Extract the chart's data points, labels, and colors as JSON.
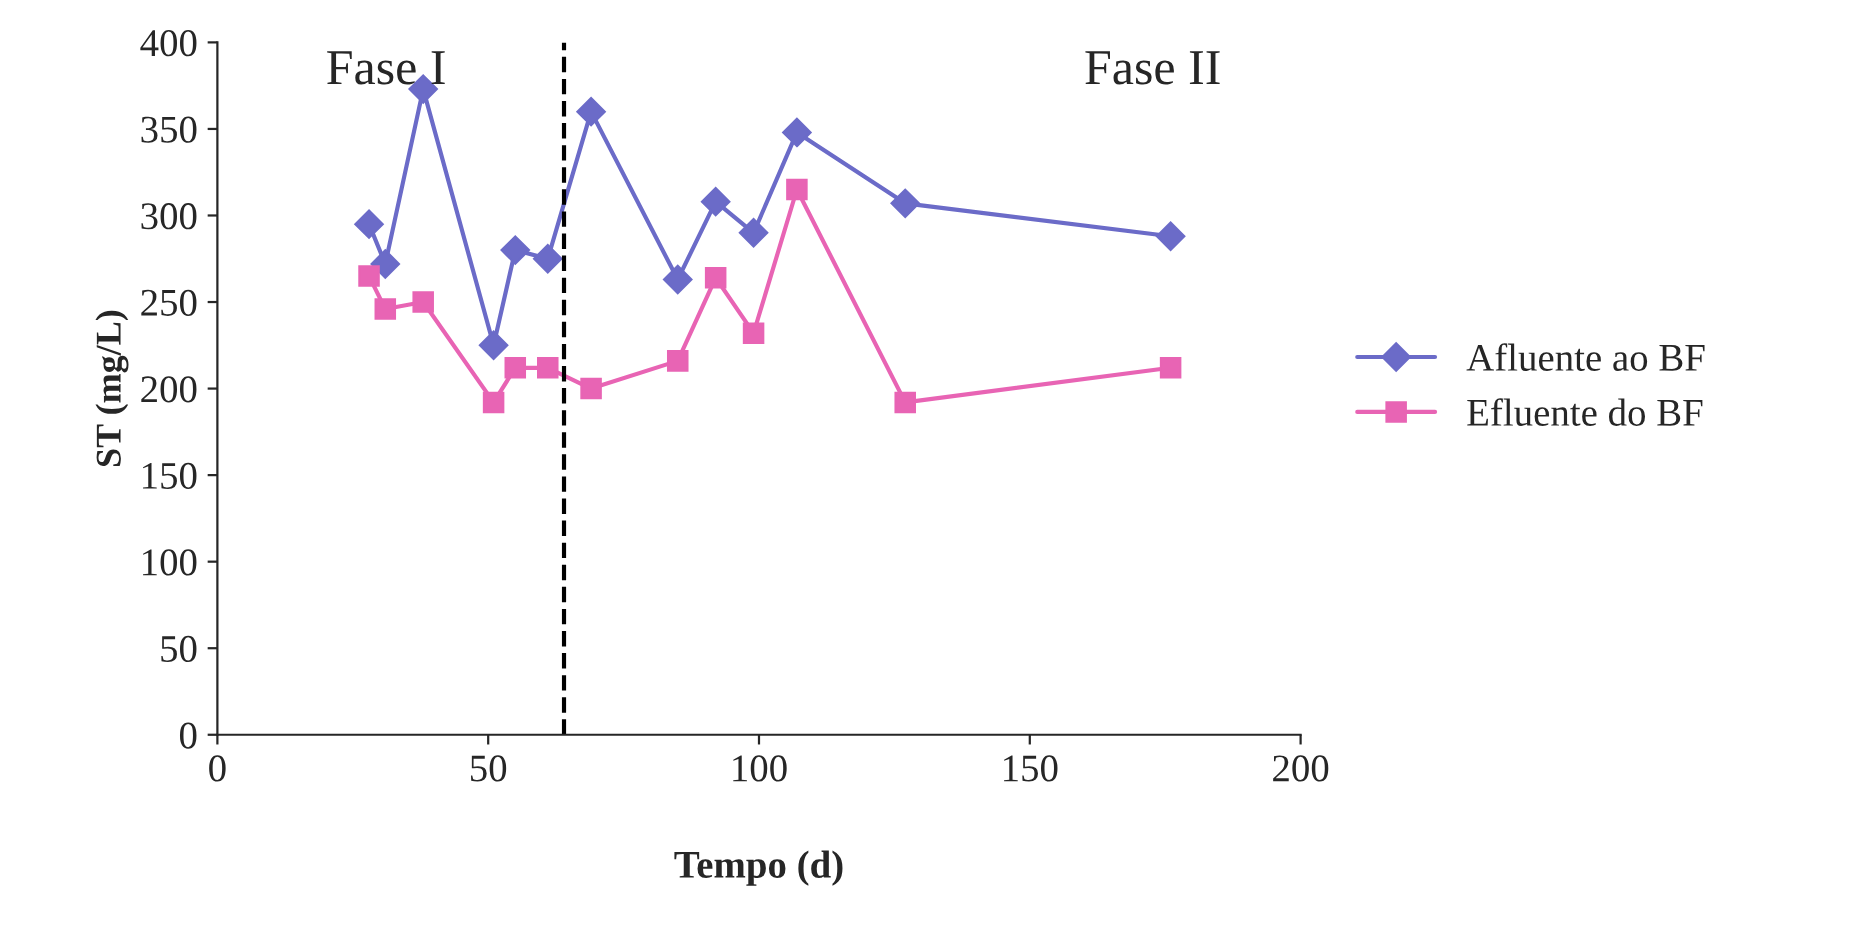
{
  "chart_data": {
    "type": "line",
    "xlabel": "Tempo (d)",
    "ylabel": "ST (mg/L)",
    "xlim": [
      0,
      200
    ],
    "xticks": [
      0,
      50,
      100,
      150,
      200
    ],
    "ylim": [
      0,
      400
    ],
    "yticks": [
      0,
      50,
      100,
      150,
      200,
      250,
      300,
      350,
      400
    ],
    "x": [
      28,
      31,
      38,
      51,
      55,
      61,
      69,
      85,
      92,
      99,
      107,
      127,
      176
    ],
    "series": [
      {
        "name": "Afluente ao BF",
        "color": "#6b6bc8",
        "marker": "diamond",
        "values": [
          295,
          272,
          373,
          225,
          280,
          275,
          360,
          263,
          308,
          290,
          348,
          307,
          288
        ]
      },
      {
        "name": "Efluente do BF",
        "color": "#e864b4",
        "marker": "square",
        "values": [
          265,
          246,
          250,
          192,
          212,
          212,
          200,
          216,
          264,
          232,
          315,
          192,
          212
        ]
      }
    ],
    "ref_lines": [
      {
        "axis": "x",
        "value": 64,
        "color": "#000000",
        "line_style": "dashed"
      }
    ],
    "annotations": [
      "Fase I",
      "Fase II"
    ],
    "legend": "right",
    "grid": false
  }
}
